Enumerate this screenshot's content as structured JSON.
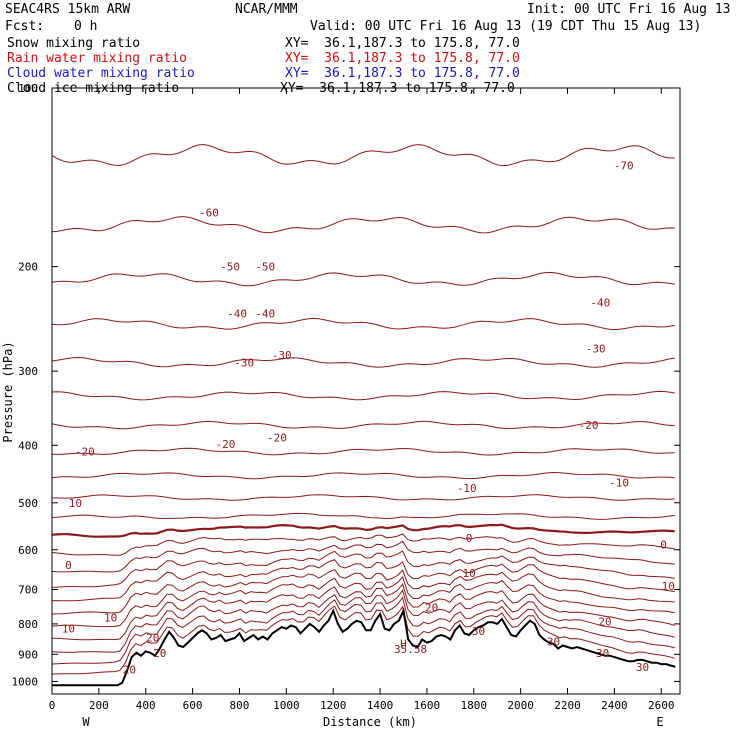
{
  "header": {
    "model": "SEAC4RS 15km ARW",
    "org": "NCAR/MMM",
    "init": "Init: 00 UTC Fri 16 Aug 13",
    "fcst_label": "Fcst:",
    "fcst_value": "0 h",
    "valid": "Valid: 00 UTC Fri 16 Aug 13 (19 CDT Thu 15 Aug 13)"
  },
  "fields": [
    {
      "label": "Snow mixing ratio",
      "xy": "XY=  36.1,187.3 to 175.8, 77.0",
      "color": "#000000"
    },
    {
      "label": "Rain water mixing ratio",
      "xy": "XY=  36.1,187.3 to 175.8, 77.0",
      "color": "#d01010"
    },
    {
      "label": "Cloud water mixing ratio",
      "xy": "XY=  36.1,187.3 to 175.8, 77.0",
      "color": "#1818c0"
    },
    {
      "label": "Cloud ice mixing ratio",
      "xy": "XY=  36.1,187.3 to 175.8, 77.0",
      "color": "#000000"
    }
  ],
  "chart_data": {
    "type": "line",
    "xlabel": "Distance (km)",
    "ylabel": "Pressure (hPa)",
    "xlim": [
      0,
      2680
    ],
    "ylim": [
      1050,
      100
    ],
    "y_scale": "log",
    "x_ticks": [
      0,
      200,
      400,
      600,
      800,
      1000,
      1200,
      1400,
      1600,
      1800,
      2000,
      2200,
      2400,
      2600
    ],
    "y_ticks": [
      100,
      200,
      300,
      400,
      500,
      600,
      700,
      800,
      900,
      1000
    ],
    "y_tick_labels": [
      "100",
      "200",
      "300",
      "400",
      "500",
      "600",
      "700",
      "800",
      "900",
      "1000"
    ],
    "x_end_labels": {
      "left": "W",
      "right": "E"
    },
    "contour_color": "#8b1a1a",
    "terrain_color": "#000000",
    "terrain": {
      "x": [
        0,
        280,
        300,
        320,
        340,
        360,
        380,
        400,
        420,
        440,
        460,
        480,
        500,
        520,
        540,
        560,
        580,
        600,
        620,
        640,
        660,
        680,
        700,
        720,
        740,
        760,
        780,
        800,
        820,
        840,
        860,
        880,
        900,
        920,
        940,
        960,
        980,
        1000,
        1020,
        1040,
        1060,
        1080,
        1100,
        1120,
        1140,
        1160,
        1180,
        1200,
        1220,
        1240,
        1260,
        1280,
        1300,
        1320,
        1340,
        1360,
        1380,
        1400,
        1420,
        1440,
        1460,
        1480,
        1500,
        1520,
        1540,
        1560,
        1580,
        1600,
        1620,
        1640,
        1660,
        1680,
        1700,
        1720,
        1740,
        1760,
        1780,
        1800,
        1820,
        1840,
        1860,
        1880,
        1900,
        1920,
        1940,
        1960,
        1980,
        2000,
        2020,
        2040,
        2060,
        2080,
        2100,
        2120,
        2140,
        2160,
        2180,
        2200,
        2220,
        2240,
        2260,
        2280,
        2300,
        2320,
        2340,
        2360,
        2380,
        2400,
        2420,
        2440,
        2460,
        2480,
        2500,
        2520,
        2540,
        2560,
        2580,
        2600,
        2620,
        2640,
        2660,
        2680
      ],
      "p": [
        1015,
        1015,
        1005,
        960,
        910,
        895,
        905,
        890,
        895,
        905,
        880,
        850,
        825,
        845,
        870,
        875,
        860,
        845,
        830,
        820,
        830,
        850,
        845,
        835,
        855,
        850,
        845,
        830,
        855,
        845,
        835,
        850,
        840,
        850,
        830,
        820,
        810,
        815,
        805,
        810,
        830,
        815,
        800,
        810,
        825,
        805,
        790,
        760,
        800,
        825,
        815,
        800,
        790,
        795,
        820,
        820,
        790,
        770,
        815,
        820,
        800,
        790,
        760,
        850,
        870,
        875,
        850,
        860,
        855,
        840,
        835,
        840,
        850,
        820,
        805,
        830,
        835,
        820,
        810,
        805,
        795,
        795,
        800,
        785,
        810,
        835,
        840,
        820,
        805,
        790,
        800,
        835,
        850,
        860,
        865,
        880,
        870,
        875,
        880,
        875,
        880,
        885,
        890,
        895,
        900,
        905,
        905,
        910,
        915,
        920,
        925,
        925,
        920,
        920,
        925,
        930,
        930,
        935,
        935,
        940,
        945
      ]
    },
    "contour_labels": [
      {
        "text": "-70",
        "x": 2440,
        "p": 135
      },
      {
        "text": "-60",
        "x": 670,
        "p": 162
      },
      {
        "text": "-50",
        "x": 760,
        "p": 200
      },
      {
        "text": "-50",
        "x": 910,
        "p": 200
      },
      {
        "text": "-40",
        "x": 790,
        "p": 240
      },
      {
        "text": "-40",
        "x": 910,
        "p": 240
      },
      {
        "text": "-40",
        "x": 2340,
        "p": 230
      },
      {
        "text": "-30",
        "x": 820,
        "p": 290
      },
      {
        "text": "-30",
        "x": 980,
        "p": 282
      },
      {
        "text": "-30",
        "x": 2320,
        "p": 275
      },
      {
        "text": "-20",
        "x": 140,
        "p": 410
      },
      {
        "text": "-20",
        "x": 740,
        "p": 398
      },
      {
        "text": "-20",
        "x": 960,
        "p": 388
      },
      {
        "text": "-20",
        "x": 2290,
        "p": 370
      },
      {
        "text": "-10",
        "x": 1770,
        "p": 472
      },
      {
        "text": "-10",
        "x": 2420,
        "p": 462
      },
      {
        "text": "10",
        "x": 100,
        "p": 500
      },
      {
        "text": "0",
        "x": 1780,
        "p": 573
      },
      {
        "text": "0",
        "x": 2610,
        "p": 588
      },
      {
        "text": "0",
        "x": 70,
        "p": 637
      },
      {
        "text": "10",
        "x": 1780,
        "p": 657
      },
      {
        "text": "10",
        "x": 2630,
        "p": 690
      },
      {
        "text": "20",
        "x": 1620,
        "p": 750
      },
      {
        "text": "10",
        "x": 250,
        "p": 780
      },
      {
        "text": "10",
        "x": 70,
        "p": 815
      },
      {
        "text": "20",
        "x": 2360,
        "p": 793
      },
      {
        "text": "20",
        "x": 430,
        "p": 843
      },
      {
        "text": "30",
        "x": 1820,
        "p": 823
      },
      {
        "text": "30",
        "x": 2140,
        "p": 857
      },
      {
        "text": "30",
        "x": 2350,
        "p": 895
      },
      {
        "text": "30",
        "x": 2520,
        "p": 945
      },
      {
        "text": "20",
        "x": 460,
        "p": 895
      },
      {
        "text": "20",
        "x": 330,
        "p": 955
      }
    ],
    "annotations": [
      {
        "text": "H",
        "x": 1500,
        "p": 863
      },
      {
        "text": "35.58",
        "x": 1530,
        "p": 882
      }
    ]
  }
}
